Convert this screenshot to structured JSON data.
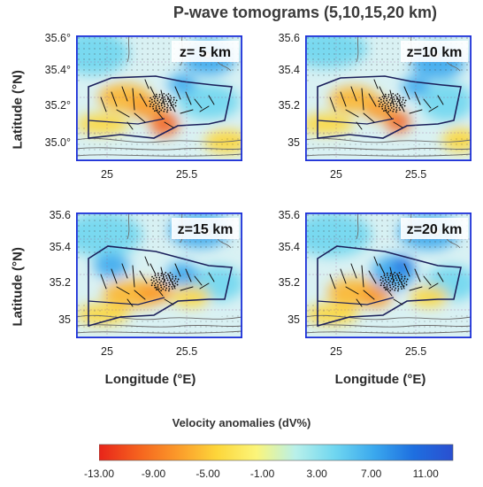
{
  "title": "P-wave tomograms (5,10,15,20 km)",
  "panels": [
    {
      "label": "z= 5 km",
      "yticks": [
        "35.6°",
        "35.4°",
        "35.2°",
        "35.0°"
      ],
      "xticks": [
        "25",
        "25.5"
      ]
    },
    {
      "label": "z=10 km",
      "yticks": [
        "35.6",
        "35.4",
        "35.2",
        "35"
      ],
      "xticks": [
        "25",
        "25.5"
      ]
    },
    {
      "label": "z=15 km",
      "yticks": [
        "35.6",
        "35.4",
        "35.2",
        "35"
      ],
      "xticks": [
        "25",
        "25.5"
      ]
    },
    {
      "label": "z=20 km",
      "yticks": [
        "35.6",
        "35.4",
        "35.2",
        "35"
      ],
      "xticks": [
        "25",
        "25.5"
      ]
    }
  ],
  "axes": {
    "ylabel": "Latitude (°N)",
    "xlabel": "Longitude (°E)"
  },
  "colorbar": {
    "title": "Velocity anomalies (dV%)",
    "ticks": [
      "-13.00",
      "-9.00",
      "-5.00",
      "-1.00",
      "3.00",
      "7.00",
      "11.00"
    ],
    "range": [
      -13,
      13
    ],
    "colors": [
      "#e8241a",
      "#f5621e",
      "#fb9a2a",
      "#fdd63a",
      "#fbf57a",
      "#b8f0ea",
      "#6fd6f0",
      "#3aa8ee",
      "#1e6fe0",
      "#2a4fd0"
    ]
  },
  "colors": {
    "border": "#1c2fd8",
    "anomaly_high": "#3aa8ee",
    "anomaly_low": "#f5621e"
  }
}
